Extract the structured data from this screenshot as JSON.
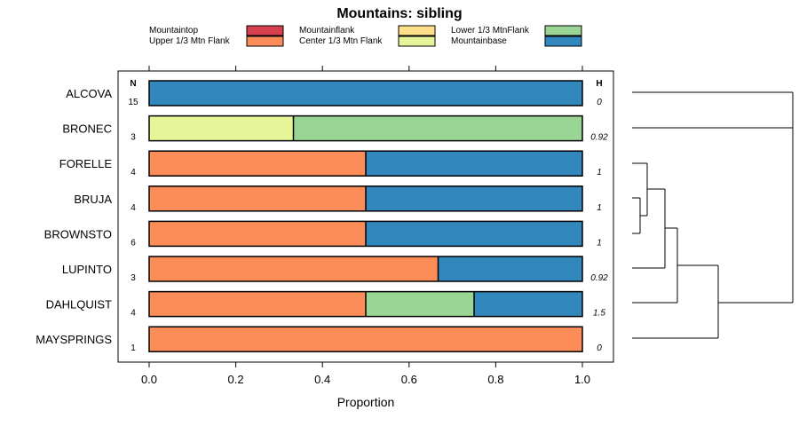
{
  "chart_data": {
    "type": "bar",
    "orientation": "horizontal",
    "stacked": true,
    "title": "Mountains: sibling",
    "xlabel": "Proportion",
    "xlim": [
      0,
      1
    ],
    "xticks": [
      "0.0",
      "0.2",
      "0.4",
      "0.6",
      "0.8",
      "1.0"
    ],
    "n_header": "N",
    "h_header": "H",
    "legend": [
      {
        "name": "Mountaintop",
        "color": "#d7404f"
      },
      {
        "name": "Upper 1/3 Mtn Flank",
        "color": "#fc8d59"
      },
      {
        "name": "Mountainflank",
        "color": "#fee08b"
      },
      {
        "name": "Center 1/3 Mtn Flank",
        "color": "#e6f598"
      },
      {
        "name": "Lower 1/3 MtnFlank",
        "color": "#99d594"
      },
      {
        "name": "Mountainbase",
        "color": "#3288bd"
      }
    ],
    "categories": [
      "ALCOVA",
      "BRONEC",
      "FORELLE",
      "BRUJA",
      "BROWNSTO",
      "LUPINTO",
      "DAHLQUIST",
      "MAYSPRINGS"
    ],
    "n": [
      "15",
      "3",
      "4",
      "4",
      "6",
      "3",
      "4",
      "1"
    ],
    "h": [
      "0",
      "0.92",
      "1",
      "1",
      "1",
      "0.92",
      "1.5",
      "0"
    ],
    "series": [
      {
        "name": "Mountaintop",
        "values": [
          0,
          0,
          0,
          0,
          0,
          0,
          0,
          0
        ]
      },
      {
        "name": "Upper 1/3 Mtn Flank",
        "values": [
          0,
          0,
          0.5,
          0.5,
          0.5,
          0.667,
          0.5,
          1
        ]
      },
      {
        "name": "Mountainflank",
        "values": [
          0,
          0,
          0,
          0,
          0,
          0,
          0,
          0
        ]
      },
      {
        "name": "Center 1/3 Mtn Flank",
        "values": [
          0,
          0.333,
          0,
          0,
          0,
          0,
          0,
          0
        ]
      },
      {
        "name": "Lower 1/3 MtnFlank",
        "values": [
          0,
          0.667,
          0,
          0,
          0,
          0,
          0.25,
          0
        ]
      },
      {
        "name": "Mountainbase",
        "values": [
          1,
          0,
          0.5,
          0.5,
          0.5,
          0.333,
          0.25,
          0
        ]
      }
    ]
  }
}
